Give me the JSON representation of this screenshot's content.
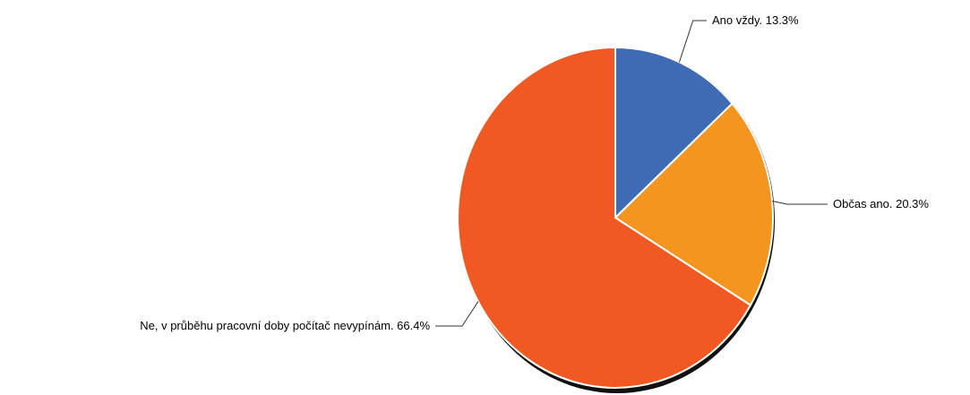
{
  "chart_data": {
    "type": "pie",
    "title": "",
    "start_angle_deg": 0,
    "direction": "clockwise",
    "slices": [
      {
        "label": "Ano vždy.",
        "value": 13.3,
        "display": "Ano vždy. 13.3%",
        "color": "#3f6ab4"
      },
      {
        "label": "Občas ano.",
        "value": 20.3,
        "display": "Občas ano. 20.3%",
        "color": "#f4951f"
      },
      {
        "label": "Ne, v průběhu pracovní doby počítač nevypínám.",
        "value": 66.4,
        "display": "Ne, v průběhu pracovní doby počítač nevypínám. 66.4%",
        "color": "#f05a22"
      }
    ]
  }
}
